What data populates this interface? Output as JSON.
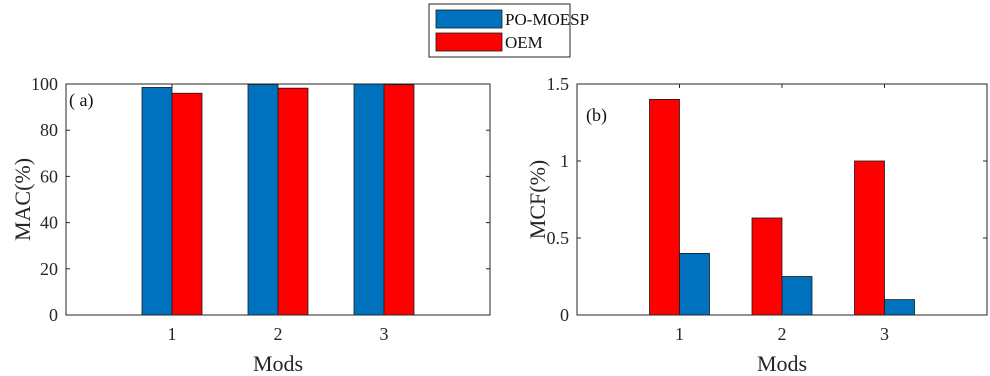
{
  "legend": {
    "entries": [
      {
        "label": "PO-MOESP",
        "color": "#0072BD"
      },
      {
        "label": "OEM",
        "color": "#FF0000"
      }
    ]
  },
  "chart_data": [
    {
      "type": "bar",
      "panel_label": "( a)",
      "categories": [
        "1",
        "2",
        "3"
      ],
      "xlabel": "Mods",
      "ylabel": "MAC(%)",
      "ylim": [
        0,
        100
      ],
      "xlim": [
        0,
        4
      ],
      "yticks": [
        "0",
        "20",
        "40",
        "60",
        "80",
        "100"
      ],
      "series": [
        {
          "name": "PO-MOESP",
          "color": "#0072BD",
          "values": [
            98.5,
            99.8,
            99.9
          ]
        },
        {
          "name": "OEM",
          "color": "#FF0000",
          "values": [
            96,
            98.2,
            99.7
          ]
        }
      ]
    },
    {
      "type": "bar",
      "panel_label": "(b)",
      "categories": [
        "1",
        "2",
        "3"
      ],
      "xlabel": "Mods",
      "ylabel": "MCF(%)",
      "ylim": [
        0,
        1.5
      ],
      "xlim": [
        0,
        4
      ],
      "yticks": [
        "0",
        "0.5",
        "1",
        "1.5"
      ],
      "series": [
        {
          "name": "OEM",
          "color": "#FF0000",
          "values": [
            1.4,
            0.63,
            1.0
          ]
        },
        {
          "name": "PO-MOESP",
          "color": "#0072BD",
          "values": [
            0.4,
            0.25,
            0.1
          ]
        }
      ]
    }
  ]
}
